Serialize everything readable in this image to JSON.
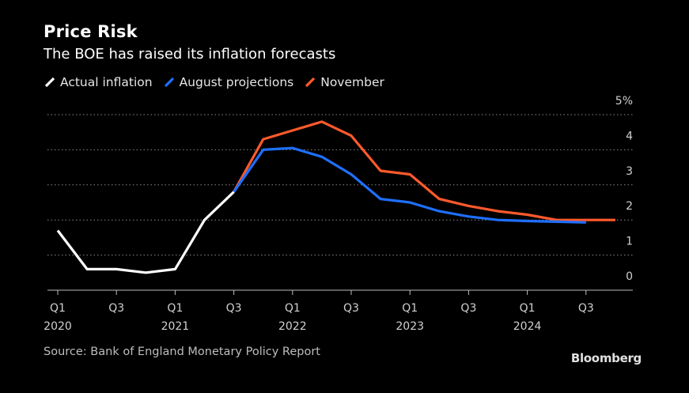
{
  "header": {
    "title": "Price Risk",
    "subtitle": "The BOE has raised its inflation forecasts"
  },
  "footer": {
    "source": "Source: Bank of England Monetary Policy Report",
    "brand": "Bloomberg"
  },
  "colors": {
    "background": "#000000",
    "actual": "#ffffff",
    "august": "#1f6fff",
    "november": "#ff5a2c",
    "grid": "#8a8a8a"
  },
  "chart_data": {
    "type": "line",
    "title": "Price Risk",
    "subtitle": "The BOE has raised its inflation forecasts",
    "ylim": [
      0,
      5
    ],
    "yticks": [
      0,
      1,
      2,
      3,
      4,
      5
    ],
    "ytick_labels": [
      "0",
      "1",
      "2",
      "3",
      "4",
      "5%"
    ],
    "y_axis_side": "right",
    "grid": true,
    "legend_position": "top-left",
    "x": [
      "2020 Q1",
      "2020 Q2",
      "2020 Q3",
      "2020 Q4",
      "2021 Q1",
      "2021 Q2",
      "2021 Q3",
      "2021 Q4",
      "2022 Q1",
      "2022 Q2",
      "2022 Q3",
      "2022 Q4",
      "2023 Q1",
      "2023 Q2",
      "2023 Q3",
      "2023 Q4",
      "2024 Q1",
      "2024 Q2",
      "2024 Q3",
      "2024 Q4"
    ],
    "xtick_labels": [
      {
        "at": "2020 Q1",
        "line1": "Q1",
        "line2": "2020"
      },
      {
        "at": "2020 Q3",
        "line1": "Q3",
        "line2": ""
      },
      {
        "at": "2021 Q1",
        "line1": "Q1",
        "line2": "2021"
      },
      {
        "at": "2021 Q3",
        "line1": "Q3",
        "line2": ""
      },
      {
        "at": "2022 Q1",
        "line1": "Q1",
        "line2": "2022"
      },
      {
        "at": "2022 Q3",
        "line1": "Q3",
        "line2": ""
      },
      {
        "at": "2023 Q1",
        "line1": "Q1",
        "line2": "2023"
      },
      {
        "at": "2023 Q3",
        "line1": "Q3",
        "line2": ""
      },
      {
        "at": "2024 Q1",
        "line1": "Q1",
        "line2": "2024"
      },
      {
        "at": "2024 Q3",
        "line1": "Q3",
        "line2": ""
      }
    ],
    "series": [
      {
        "name": "Actual inflation",
        "color": "#ffffff",
        "x": [
          "2020 Q1",
          "2020 Q2",
          "2020 Q3",
          "2020 Q4",
          "2021 Q1",
          "2021 Q2",
          "2021 Q3"
        ],
        "values": [
          1.7,
          0.6,
          0.6,
          0.5,
          0.6,
          2.0,
          2.8
        ]
      },
      {
        "name": "August projections",
        "color": "#1f6fff",
        "x": [
          "2021 Q3",
          "2021 Q4",
          "2022 Q1",
          "2022 Q2",
          "2022 Q3",
          "2022 Q4",
          "2023 Q1",
          "2023 Q2",
          "2023 Q3",
          "2023 Q4",
          "2024 Q1",
          "2024 Q2",
          "2024 Q3"
        ],
        "values": [
          2.8,
          4.0,
          4.05,
          3.8,
          3.3,
          2.6,
          2.5,
          2.25,
          2.1,
          2.0,
          1.97,
          1.95,
          1.93
        ]
      },
      {
        "name": "November",
        "color": "#ff5a2c",
        "x": [
          "2021 Q3",
          "2021 Q4",
          "2022 Q1",
          "2022 Q2",
          "2022 Q3",
          "2022 Q4",
          "2023 Q1",
          "2023 Q2",
          "2023 Q3",
          "2023 Q4",
          "2024 Q1",
          "2024 Q2",
          "2024 Q3",
          "2024 Q4"
        ],
        "values": [
          2.8,
          4.3,
          4.55,
          4.8,
          4.4,
          3.4,
          3.3,
          2.6,
          2.4,
          2.25,
          2.15,
          2.0,
          2.0,
          2.0
        ]
      }
    ]
  }
}
